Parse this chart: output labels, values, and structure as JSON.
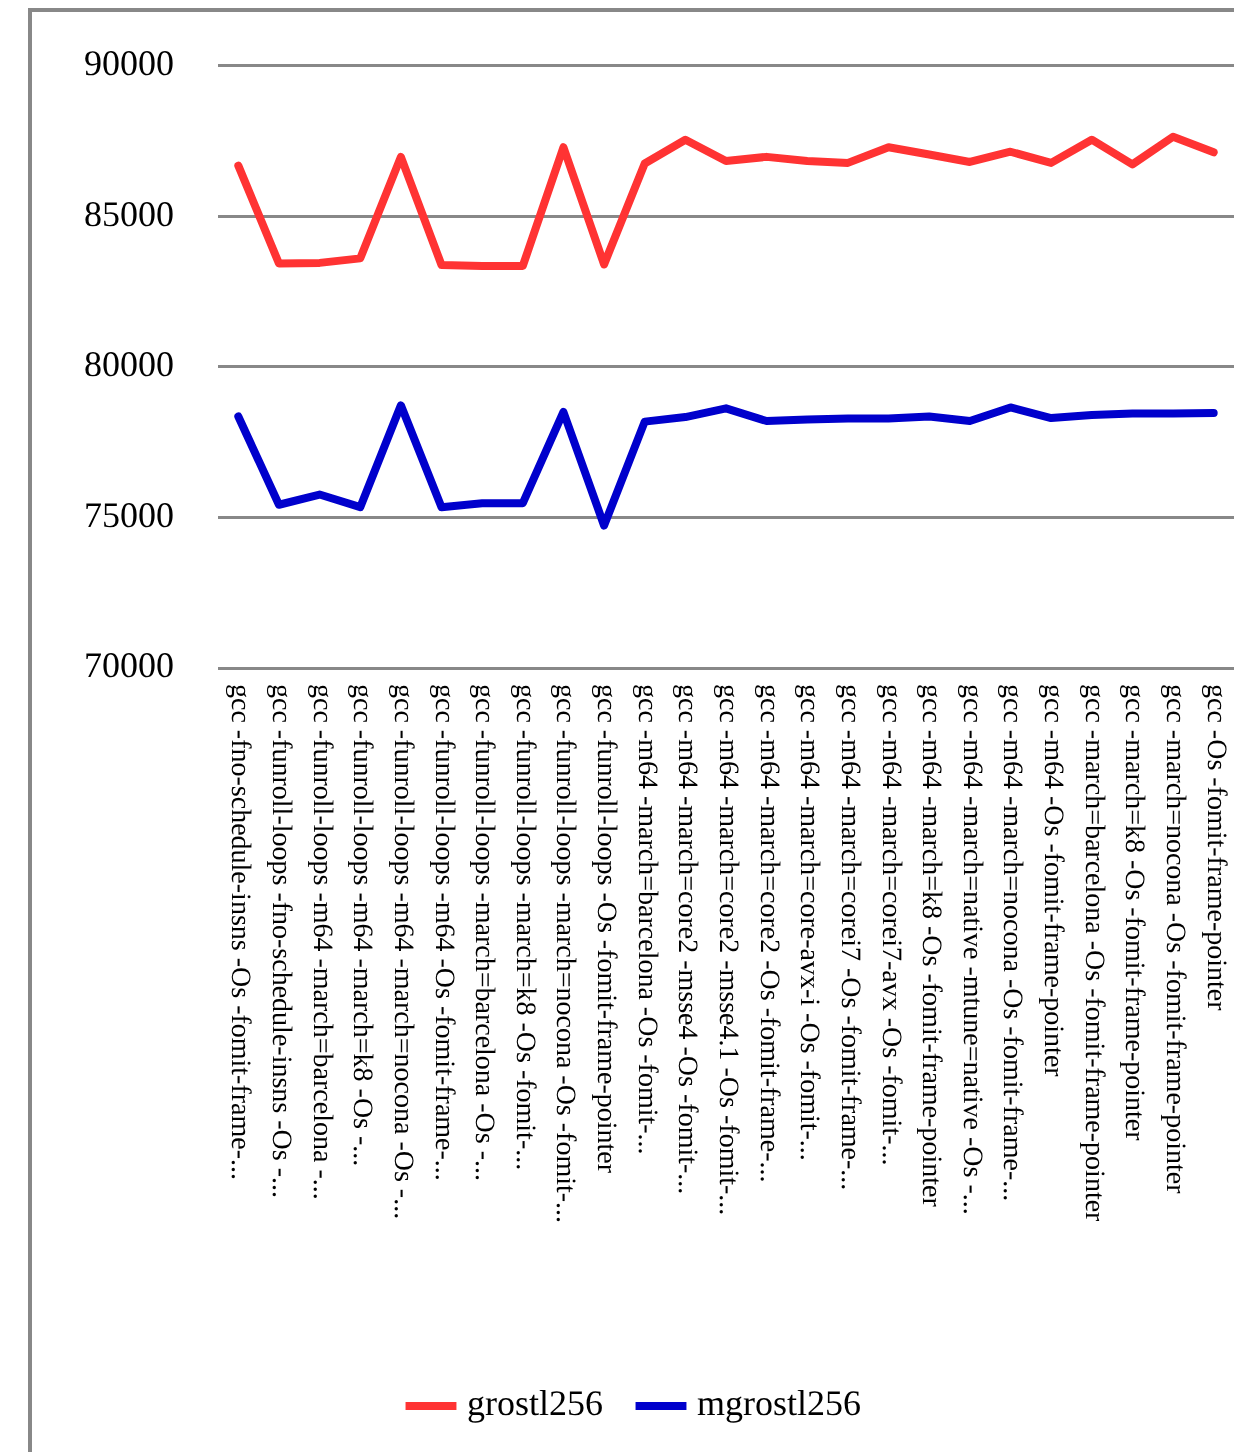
{
  "chart_data": {
    "type": "line",
    "categories": [
      "gcc -fno-schedule-insns -Os -fomit-frame-...",
      "gcc -funroll-loops -fno-schedule-insns -Os -...",
      "gcc -funroll-loops -m64 -march=barcelona -...",
      "gcc -funroll-loops -m64 -march=k8 -Os -...",
      "gcc -funroll-loops -m64 -march=nocona -Os -...",
      "gcc -funroll-loops -m64 -Os -fomit-frame-...",
      "gcc -funroll-loops -march=barcelona -Os -...",
      "gcc -funroll-loops -march=k8 -Os -fomit-...",
      "gcc -funroll-loops -march=nocona -Os -fomit-...",
      "gcc -funroll-loops -Os -fomit-frame-pointer",
      "gcc -m64 -march=barcelona -Os -fomit-...",
      "gcc -m64 -march=core2 -msse4 -Os -fomit-...",
      "gcc -m64 -march=core2 -msse4.1 -Os -fomit-...",
      "gcc -m64 -march=core2 -Os -fomit-frame-...",
      "gcc -m64 -march=core-avx-i -Os -fomit-...",
      "gcc -m64 -march=corei7 -Os -fomit-frame-...",
      "gcc -m64 -march=corei7-avx -Os -fomit-...",
      "gcc -m64 -march=k8 -Os -fomit-frame-pointer",
      "gcc -m64 -march=native -mtune=native -Os -...",
      "gcc -m64 -march=nocona -Os -fomit-frame-...",
      "gcc -m64 -Os -fomit-frame-pointer",
      "gcc -march=barcelona -Os -fomit-frame-pointer",
      "gcc -march=k8 -Os -fomit-frame-pointer",
      "gcc -march=nocona -Os -fomit-frame-pointer",
      "gcc -Os -fomit-frame-pointer"
    ],
    "series": [
      {
        "name": "grostl256",
        "color": "#ff3333",
        "values": [
          86680,
          83430,
          83450,
          83600,
          86970,
          83380,
          83350,
          83350,
          87290,
          83400,
          86750,
          87540,
          86830,
          86970,
          86830,
          86770,
          87290,
          87050,
          86800,
          87140,
          86770,
          87540,
          86720,
          87640,
          87120
        ]
      },
      {
        "name": "mgrostl256",
        "color": "#0000cc",
        "values": [
          78350,
          75420,
          75760,
          75340,
          78720,
          75340,
          75470,
          75470,
          78500,
          74730,
          78180,
          78330,
          78620,
          78200,
          78250,
          78280,
          78280,
          78350,
          78200,
          78650,
          78300,
          78400,
          78450,
          78450,
          78470
        ]
      }
    ],
    "ylim": [
      70000,
      90000
    ],
    "yticks": [
      70000,
      75000,
      80000,
      85000,
      90000
    ],
    "grid": "y",
    "legend": "bottom",
    "marker": "none",
    "line_style": "solid"
  }
}
